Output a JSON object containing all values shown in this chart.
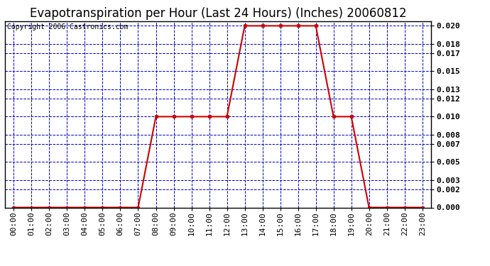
{
  "title": "Evapotranspiration per Hour (Last 24 Hours) (Inches) 20060812",
  "copyright_text": "Copyright 2006 Castronics.com",
  "hours": [
    0,
    1,
    2,
    3,
    4,
    5,
    6,
    7,
    8,
    9,
    10,
    11,
    12,
    13,
    14,
    15,
    16,
    17,
    18,
    19,
    20,
    21,
    22,
    23
  ],
  "hour_labels": [
    "00:00",
    "01:00",
    "02:00",
    "03:00",
    "04:00",
    "05:00",
    "06:00",
    "07:00",
    "08:00",
    "09:00",
    "10:00",
    "11:00",
    "12:00",
    "13:00",
    "14:00",
    "15:00",
    "16:00",
    "17:00",
    "18:00",
    "19:00",
    "20:00",
    "21:00",
    "22:00",
    "23:00"
  ],
  "values": [
    0.0,
    0.0,
    0.0,
    0.0,
    0.0,
    0.0,
    0.0,
    0.0,
    0.01,
    0.01,
    0.01,
    0.01,
    0.01,
    0.02,
    0.02,
    0.02,
    0.02,
    0.02,
    0.01,
    0.01,
    0.0,
    0.0,
    0.0,
    0.0
  ],
  "line_color": "#cc0000",
  "marker_color": "#cc0000",
  "bg_color": "#ffffff",
  "plot_bg_color": "#ffffff",
  "grid_color": "#0000bb",
  "axis_color": "#000000",
  "title_fontsize": 12,
  "copyright_fontsize": 7,
  "tick_fontsize": 8,
  "ylim": [
    0.0,
    0.0205
  ],
  "yticks": [
    0.0,
    0.002,
    0.003,
    0.005,
    0.007,
    0.008,
    0.01,
    0.012,
    0.013,
    0.015,
    0.017,
    0.018,
    0.02
  ]
}
